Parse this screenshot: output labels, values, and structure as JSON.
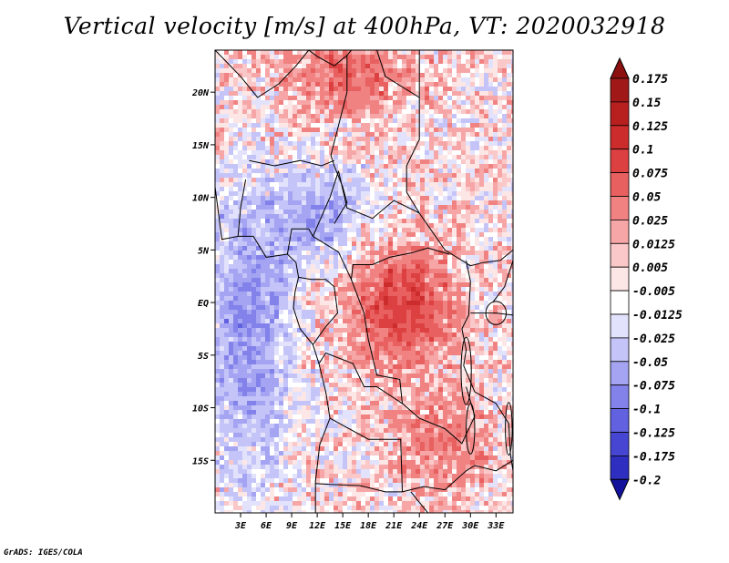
{
  "title": "Vertical velocity [m/s] at 400hPa, VT: 2020032918",
  "credit": "GrADS: IGES/COLA",
  "map": {
    "lon_range": [
      0,
      35
    ],
    "lat_range": [
      -20,
      24
    ],
    "lat_ticks": [
      {
        "value": 20,
        "label": "20N"
      },
      {
        "value": 15,
        "label": "15N"
      },
      {
        "value": 10,
        "label": "10N"
      },
      {
        "value": 5,
        "label": "5N"
      },
      {
        "value": 0,
        "label": "EQ"
      },
      {
        "value": -5,
        "label": "5S"
      },
      {
        "value": -10,
        "label": "10S"
      },
      {
        "value": -15,
        "label": "15S"
      }
    ],
    "lon_ticks": [
      {
        "value": 3,
        "label": "3E"
      },
      {
        "value": 6,
        "label": "6E"
      },
      {
        "value": 9,
        "label": "9E"
      },
      {
        "value": 12,
        "label": "12E"
      },
      {
        "value": 15,
        "label": "15E"
      },
      {
        "value": 18,
        "label": "18E"
      },
      {
        "value": 21,
        "label": "21E"
      },
      {
        "value": 24,
        "label": "24E"
      },
      {
        "value": 27,
        "label": "27E"
      },
      {
        "value": 30,
        "label": "30E"
      },
      {
        "value": 33,
        "label": "33E"
      }
    ]
  },
  "colorbar": {
    "levels": [
      {
        "label": "0.175",
        "color": "#a01818"
      },
      {
        "label": "0.15",
        "color": "#b82020"
      },
      {
        "label": "0.125",
        "color": "#cc2c2c"
      },
      {
        "label": "0.1",
        "color": "#dc4040"
      },
      {
        "label": "0.075",
        "color": "#e86060"
      },
      {
        "label": "0.05",
        "color": "#f08282"
      },
      {
        "label": "0.025",
        "color": "#f6a6a6"
      },
      {
        "label": "0.0125",
        "color": "#fac8c8"
      },
      {
        "label": "0.005",
        "color": "#fde6e6"
      },
      {
        "label": "-0.005",
        "color": "#ffffff"
      },
      {
        "label": "-0.0125",
        "color": "#e2e2fc"
      },
      {
        "label": "-0.025",
        "color": "#c4c4f8"
      },
      {
        "label": "-0.05",
        "color": "#a4a4f2"
      },
      {
        "label": "-0.075",
        "color": "#8282ea"
      },
      {
        "label": "-0.1",
        "color": "#6262e0"
      },
      {
        "label": "-0.125",
        "color": "#4646d2"
      },
      {
        "label": "-0.175",
        "color": "#2e2ec0"
      },
      {
        "label": "-0.2",
        "color": "#1a1aa8"
      }
    ],
    "top_color": "#8c1010",
    "bottom_color": "#12129a",
    "below_color": "#12129a"
  }
}
